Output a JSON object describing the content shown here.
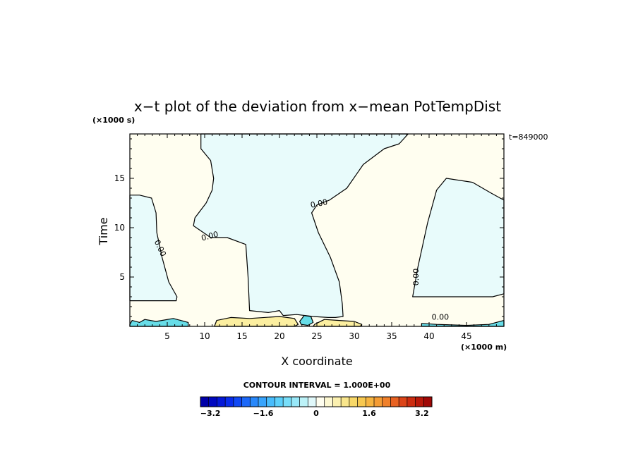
{
  "chart_data": {
    "type": "heatmap",
    "title": "x−t plot of the deviation from x−mean PotTempDist",
    "xlabel": "X coordinate",
    "ylabel": "Time",
    "x_unit": "(×1000 m)",
    "y_unit": "(×1000 s)",
    "time_annotation": "t=849000",
    "xlim": [
      0,
      50
    ],
    "ylim": [
      0,
      19.5
    ],
    "x_ticks": [
      5,
      10,
      15,
      20,
      25,
      30,
      35,
      40,
      45
    ],
    "x_tick_labels": [
      "5",
      "10",
      "15",
      "20",
      "25",
      "30",
      "35",
      "40",
      "45"
    ],
    "y_ticks": [
      5,
      10,
      15
    ],
    "y_tick_labels": [
      "5",
      "10",
      "15"
    ],
    "contour_interval_text": "CONTOUR INTERVAL = 1.000E+00",
    "contour_labels": [
      {
        "text": "0.00",
        "x": 4.0,
        "y": 7.9,
        "rotate": 65
      },
      {
        "text": "0.00",
        "x": 10.7,
        "y": 9.1,
        "rotate": -15
      },
      {
        "text": "0.00",
        "x": 25.3,
        "y": 12.4,
        "rotate": -12
      },
      {
        "text": "0.00",
        "x": 38.3,
        "y": 5.0,
        "rotate": -90
      },
      {
        "text": "0.00",
        "x": 41.5,
        "y": 0.9,
        "rotate": 0
      }
    ],
    "regions": [
      {
        "sign": "negative",
        "color": "#e8fbfb",
        "points": [
          [
            0,
            13.3
          ],
          [
            1.3,
            13.3
          ],
          [
            2.9,
            13.0
          ],
          [
            3.5,
            11.5
          ],
          [
            3.6,
            9.5
          ],
          [
            4.3,
            7.0
          ],
          [
            5.2,
            4.5
          ],
          [
            6.3,
            3.0
          ],
          [
            6.2,
            2.6
          ],
          [
            0,
            2.6
          ]
        ]
      },
      {
        "sign": "negative",
        "color": "#e8fbfb",
        "points": [
          [
            9.5,
            19.5
          ],
          [
            9.5,
            18.0
          ],
          [
            10.8,
            16.8
          ],
          [
            11.2,
            15.0
          ],
          [
            11.0,
            13.8
          ],
          [
            10.2,
            12.5
          ],
          [
            8.7,
            11.0
          ],
          [
            8.5,
            10.2
          ],
          [
            10.8,
            9.0
          ],
          [
            13.0,
            9.0
          ],
          [
            15.5,
            8.3
          ],
          [
            15.8,
            5.0
          ],
          [
            16.0,
            1.6
          ],
          [
            18.5,
            1.4
          ],
          [
            20.0,
            1.6
          ],
          [
            20.5,
            1.1
          ],
          [
            22.3,
            1.2
          ],
          [
            24.5,
            1.0
          ],
          [
            26.5,
            0.9
          ],
          [
            27.5,
            0.9
          ],
          [
            28.5,
            1.0
          ],
          [
            28.4,
            2.3
          ],
          [
            28.0,
            4.5
          ],
          [
            26.8,
            7.0
          ],
          [
            25.2,
            9.5
          ],
          [
            24.3,
            11.5
          ],
          [
            25.0,
            12.3
          ],
          [
            26.7,
            12.8
          ],
          [
            29.0,
            14.0
          ],
          [
            31.2,
            16.4
          ],
          [
            34.0,
            18.0
          ],
          [
            36.0,
            18.5
          ],
          [
            37.2,
            19.5
          ]
        ]
      },
      {
        "sign": "negative",
        "color": "#e8fbfb",
        "points": [
          [
            37.8,
            3.0
          ],
          [
            38.5,
            6.0
          ],
          [
            39.8,
            10.5
          ],
          [
            41.0,
            13.8
          ],
          [
            42.3,
            15.0
          ],
          [
            45.8,
            14.6
          ],
          [
            48.3,
            13.5
          ],
          [
            49.5,
            13.0
          ],
          [
            50,
            12.8
          ],
          [
            50,
            3.3
          ],
          [
            48.5,
            3.0
          ],
          [
            44.0,
            3.0
          ]
        ]
      },
      {
        "sign": "negative",
        "color": "#67dde8",
        "points": [
          [
            0,
            0.2
          ],
          [
            0.3,
            0.6
          ],
          [
            1.3,
            0.4
          ],
          [
            2.0,
            0.7
          ],
          [
            3.5,
            0.5
          ],
          [
            5.8,
            0.8
          ],
          [
            7.8,
            0.4
          ],
          [
            7.8,
            0
          ],
          [
            0,
            0
          ]
        ]
      },
      {
        "sign": "negative",
        "color": "#67dde8",
        "points": [
          [
            39.0,
            0.3
          ],
          [
            41.0,
            0.2
          ],
          [
            45.0,
            0.1
          ],
          [
            48.0,
            0.2
          ],
          [
            50,
            0.6
          ],
          [
            50,
            0
          ],
          [
            39.0,
            0
          ]
        ]
      },
      {
        "sign": "negative",
        "color": "#67dde8",
        "points": [
          [
            22.7,
            0.5
          ],
          [
            23.3,
            1.1
          ],
          [
            24.2,
            1.0
          ],
          [
            24.5,
            0.4
          ],
          [
            23.8,
            0.1
          ],
          [
            22.9,
            0.2
          ]
        ]
      },
      {
        "sign": "positive",
        "color": "#fcefa0",
        "points": [
          [
            11.3,
            0
          ],
          [
            11.6,
            0.6
          ],
          [
            13.5,
            0.9
          ],
          [
            16.0,
            0.8
          ],
          [
            20.0,
            1.0
          ],
          [
            22.0,
            0.8
          ],
          [
            22.5,
            0.2
          ],
          [
            22.0,
            0
          ]
        ]
      },
      {
        "sign": "positive",
        "color": "#fcefa0",
        "points": [
          [
            24.7,
            0.2
          ],
          [
            26.0,
            0.7
          ],
          [
            28.0,
            0.6
          ],
          [
            30.0,
            0.5
          ],
          [
            31.0,
            0.2
          ],
          [
            30.8,
            0
          ],
          [
            24.5,
            0
          ]
        ]
      }
    ],
    "colorbar": {
      "colors": [
        "#0000a8",
        "#0008c0",
        "#0418d8",
        "#082ceb",
        "#1048f4",
        "#1c68f8",
        "#2888fb",
        "#38a4fc",
        "#48bcfc",
        "#5cd0fb",
        "#78def9",
        "#98e8f8",
        "#bcf2f8",
        "#e0f8fa",
        "#fffef0",
        "#fdf8d2",
        "#fbf0b0",
        "#f9e68c",
        "#f8d868",
        "#f7c850",
        "#f6b440",
        "#f49c34",
        "#f0802a",
        "#e86222",
        "#dc4418",
        "#cc2c10",
        "#b8180a",
        "#a00806"
      ],
      "min": -3.5,
      "max": 3.5,
      "tick_values": [
        -3.2,
        -1.6,
        0,
        1.6,
        3.2
      ],
      "tick_labels": [
        "−3.2",
        "−1.6",
        "0",
        "1.6",
        "3.2"
      ]
    }
  }
}
